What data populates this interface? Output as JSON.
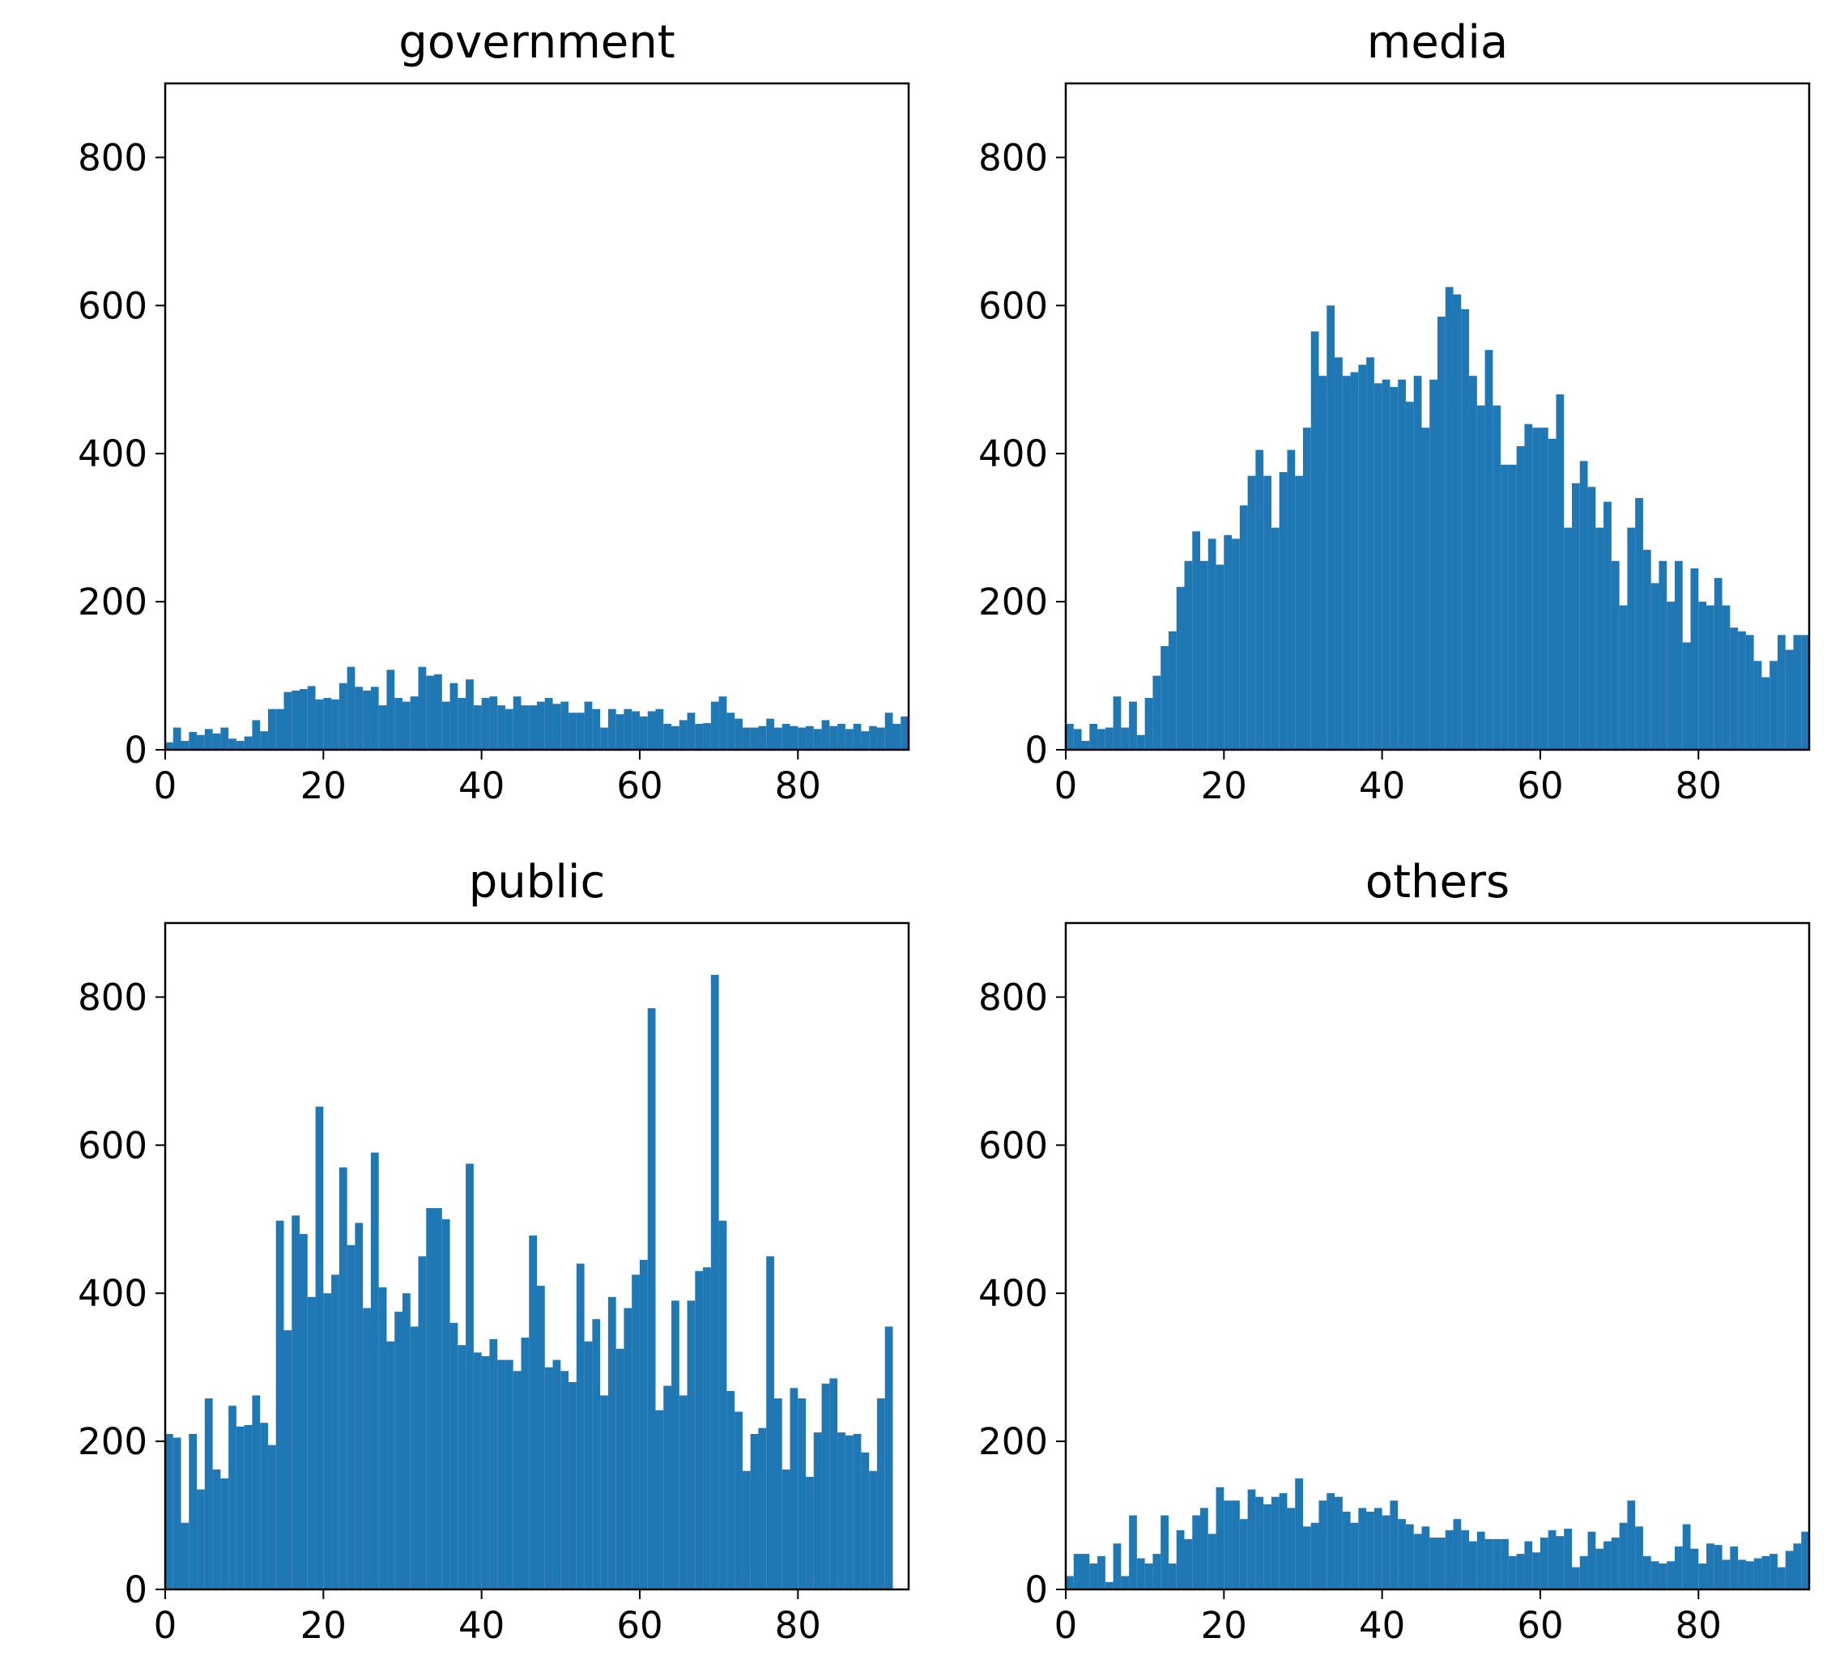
{
  "figure": {
    "bar_color": "#1f77b4",
    "background": "#ffffff"
  },
  "chart_data": [
    {
      "type": "bar",
      "title": "government",
      "xlabel": "",
      "ylabel": "",
      "xlim": [
        0,
        94
      ],
      "ylim": [
        0,
        900
      ],
      "x_ticks": [
        0,
        20,
        40,
        60,
        80
      ],
      "y_ticks": [
        0,
        200,
        400,
        600,
        800
      ],
      "grid": false,
      "x": [
        0,
        1,
        2,
        3,
        4,
        5,
        6,
        7,
        8,
        9,
        10,
        11,
        12,
        13,
        14,
        15,
        16,
        17,
        18,
        19,
        20,
        21,
        22,
        23,
        24,
        25,
        26,
        27,
        28,
        29,
        30,
        31,
        32,
        33,
        34,
        35,
        36,
        37,
        38,
        39,
        40,
        41,
        42,
        43,
        44,
        45,
        46,
        47,
        48,
        49,
        50,
        51,
        52,
        53,
        54,
        55,
        56,
        57,
        58,
        59,
        60,
        61,
        62,
        63,
        64,
        65,
        66,
        67,
        68,
        69,
        70,
        71,
        72,
        73,
        74,
        75,
        76,
        77,
        78,
        79,
        80,
        81,
        82,
        83,
        84,
        85,
        86,
        87,
        88,
        89,
        90,
        91,
        92,
        93
      ],
      "values": [
        10,
        30,
        12,
        24,
        20,
        28,
        22,
        30,
        15,
        12,
        18,
        40,
        25,
        55,
        55,
        78,
        80,
        82,
        86,
        68,
        70,
        68,
        90,
        112,
        85,
        80,
        85,
        60,
        108,
        70,
        65,
        72,
        112,
        100,
        102,
        65,
        90,
        70,
        95,
        60,
        70,
        72,
        60,
        55,
        72,
        60,
        60,
        65,
        70,
        62,
        65,
        50,
        50,
        65,
        55,
        30,
        55,
        48,
        55,
        52,
        45,
        52,
        55,
        35,
        32,
        40,
        50,
        35,
        36,
        65,
        72,
        50,
        42,
        30,
        30,
        32,
        42,
        30,
        35,
        32,
        30,
        32,
        28,
        40,
        32,
        35,
        28,
        35,
        25,
        32,
        30,
        50,
        35,
        45
      ]
    },
    {
      "type": "bar",
      "title": "media",
      "xlabel": "",
      "ylabel": "",
      "xlim": [
        0,
        94
      ],
      "ylim": [
        0,
        900
      ],
      "x_ticks": [
        0,
        20,
        40,
        60,
        80
      ],
      "y_ticks": [
        0,
        200,
        400,
        600,
        800
      ],
      "grid": false,
      "x": [
        0,
        1,
        2,
        3,
        4,
        5,
        6,
        7,
        8,
        9,
        10,
        11,
        12,
        13,
        14,
        15,
        16,
        17,
        18,
        19,
        20,
        21,
        22,
        23,
        24,
        25,
        26,
        27,
        28,
        29,
        30,
        31,
        32,
        33,
        34,
        35,
        36,
        37,
        38,
        39,
        40,
        41,
        42,
        43,
        44,
        45,
        46,
        47,
        48,
        49,
        50,
        51,
        52,
        53,
        54,
        55,
        56,
        57,
        58,
        59,
        60,
        61,
        62,
        63,
        64,
        65,
        66,
        67,
        68,
        69,
        70,
        71,
        72,
        73,
        74,
        75,
        76,
        77,
        78,
        79,
        80,
        81,
        82,
        83,
        84,
        85,
        86,
        87,
        88,
        89,
        90,
        91,
        92,
        93
      ],
      "values": [
        35,
        28,
        12,
        35,
        28,
        30,
        72,
        30,
        65,
        20,
        70,
        100,
        140,
        160,
        220,
        255,
        295,
        255,
        285,
        250,
        290,
        285,
        330,
        370,
        405,
        370,
        300,
        375,
        405,
        370,
        435,
        565,
        505,
        600,
        530,
        505,
        510,
        520,
        530,
        495,
        500,
        490,
        500,
        470,
        505,
        435,
        500,
        585,
        625,
        615,
        595,
        505,
        465,
        540,
        465,
        385,
        385,
        410,
        440,
        435,
        435,
        420,
        480,
        300,
        360,
        390,
        355,
        300,
        335,
        255,
        195,
        300,
        340,
        270,
        225,
        255,
        200,
        255,
        145,
        245,
        200,
        195,
        232,
        195,
        165,
        160,
        155,
        120,
        98,
        120,
        155,
        135,
        155,
        155
      ]
    },
    {
      "type": "bar",
      "title": "public",
      "xlabel": "",
      "ylabel": "",
      "xlim": [
        0,
        94
      ],
      "ylim": [
        0,
        900
      ],
      "x_ticks": [
        0,
        20,
        40,
        60,
        80
      ],
      "y_ticks": [
        0,
        200,
        400,
        600,
        800
      ],
      "grid": false,
      "x": [
        0,
        1,
        2,
        3,
        4,
        5,
        6,
        7,
        8,
        9,
        10,
        11,
        12,
        13,
        14,
        15,
        16,
        17,
        18,
        19,
        20,
        21,
        22,
        23,
        24,
        25,
        26,
        27,
        28,
        29,
        30,
        31,
        32,
        33,
        34,
        35,
        36,
        37,
        38,
        39,
        40,
        41,
        42,
        43,
        44,
        45,
        46,
        47,
        48,
        49,
        50,
        51,
        52,
        53,
        54,
        55,
        56,
        57,
        58,
        59,
        60,
        61,
        62,
        63,
        64,
        65,
        66,
        67,
        68,
        69,
        70,
        71,
        72,
        73,
        74,
        75,
        76,
        77,
        78,
        79,
        80,
        81,
        82,
        83,
        84,
        85,
        86,
        87,
        88,
        89,
        90,
        91,
        92,
        93
      ],
      "values": [
        210,
        205,
        90,
        210,
        135,
        258,
        162,
        150,
        248,
        220,
        222,
        262,
        225,
        195,
        498,
        350,
        505,
        480,
        395,
        652,
        400,
        425,
        570,
        465,
        495,
        380,
        590,
        408,
        335,
        375,
        400,
        355,
        450,
        515,
        515,
        500,
        360,
        330,
        575,
        320,
        315,
        338,
        310,
        310,
        295,
        340,
        478,
        410,
        300,
        310,
        295,
        280,
        440,
        335,
        365,
        262,
        395,
        325,
        380,
        425,
        445,
        785,
        242,
        275,
        390,
        262,
        390,
        430,
        435,
        830,
        498,
        268,
        240,
        160,
        210,
        218,
        450,
        258,
        162,
        272,
        258,
        152,
        212,
        278,
        285,
        212,
        208,
        210,
        185,
        160,
        258,
        355,
        0,
        0
      ]
    },
    {
      "type": "bar",
      "title": "others",
      "xlabel": "",
      "ylabel": "",
      "xlim": [
        0,
        94
      ],
      "ylim": [
        0,
        900
      ],
      "x_ticks": [
        0,
        20,
        40,
        60,
        80
      ],
      "y_ticks": [
        0,
        200,
        400,
        600,
        800
      ],
      "grid": false,
      "x": [
        0,
        1,
        2,
        3,
        4,
        5,
        6,
        7,
        8,
        9,
        10,
        11,
        12,
        13,
        14,
        15,
        16,
        17,
        18,
        19,
        20,
        21,
        22,
        23,
        24,
        25,
        26,
        27,
        28,
        29,
        30,
        31,
        32,
        33,
        34,
        35,
        36,
        37,
        38,
        39,
        40,
        41,
        42,
        43,
        44,
        45,
        46,
        47,
        48,
        49,
        50,
        51,
        52,
        53,
        54,
        55,
        56,
        57,
        58,
        59,
        60,
        61,
        62,
        63,
        64,
        65,
        66,
        67,
        68,
        69,
        70,
        71,
        72,
        73,
        74,
        75,
        76,
        77,
        78,
        79,
        80,
        81,
        82,
        83,
        84,
        85,
        86,
        87,
        88,
        89,
        90,
        91,
        92,
        93
      ],
      "values": [
        18,
        48,
        48,
        35,
        45,
        10,
        62,
        18,
        100,
        42,
        35,
        48,
        100,
        35,
        80,
        68,
        100,
        110,
        75,
        138,
        120,
        120,
        95,
        135,
        125,
        115,
        125,
        130,
        110,
        150,
        85,
        90,
        120,
        130,
        125,
        105,
        90,
        110,
        105,
        110,
        100,
        120,
        95,
        88,
        75,
        85,
        70,
        70,
        80,
        95,
        80,
        65,
        78,
        68,
        68,
        68,
        45,
        48,
        65,
        50,
        70,
        80,
        72,
        82,
        30,
        45,
        78,
        55,
        65,
        70,
        90,
        120,
        85,
        45,
        38,
        35,
        38,
        58,
        88,
        55,
        35,
        62,
        60,
        40,
        58,
        40,
        38,
        42,
        45,
        48,
        30,
        52,
        62,
        78
      ]
    }
  ]
}
